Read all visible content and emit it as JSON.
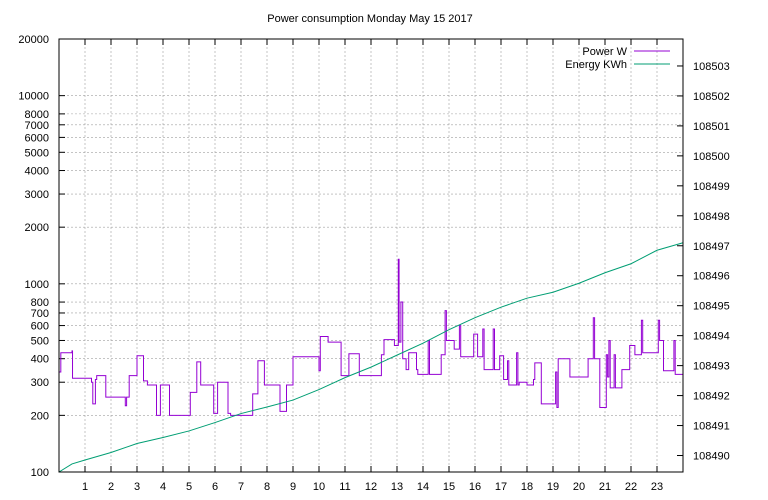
{
  "chart_data": {
    "type": "line",
    "title": "Power consumption Monday May 15 2017",
    "x_ticks": [
      1,
      2,
      3,
      4,
      5,
      6,
      7,
      8,
      9,
      10,
      11,
      12,
      13,
      14,
      15,
      16,
      17,
      18,
      19,
      20,
      21,
      22,
      23
    ],
    "xlim": [
      0,
      24
    ],
    "y_left": {
      "scale": "log",
      "lim": [
        100,
        20000
      ],
      "ticks": [
        100,
        200,
        300,
        400,
        500,
        600,
        700,
        800,
        1000,
        2000,
        3000,
        4000,
        5000,
        6000,
        7000,
        8000,
        10000,
        20000
      ]
    },
    "y_right": {
      "scale": "linear",
      "lim": [
        108489.45,
        108503.9
      ],
      "ticks": [
        108490,
        108491,
        108492,
        108493,
        108494,
        108495,
        108496,
        108497,
        108498,
        108499,
        108500,
        108501,
        108502,
        108503
      ]
    },
    "grid": true,
    "legend_position": "top-right",
    "series": [
      {
        "name": "Power W",
        "axis": "left",
        "color": "#9400d3",
        "step": true,
        "points": [
          [
            0.0,
            340
          ],
          [
            0.07,
            430
          ],
          [
            0.5,
            440
          ],
          [
            0.52,
            315
          ],
          [
            1.2,
            315
          ],
          [
            1.25,
            300
          ],
          [
            1.3,
            230
          ],
          [
            1.4,
            310
          ],
          [
            1.45,
            325
          ],
          [
            1.75,
            325
          ],
          [
            1.8,
            250
          ],
          [
            2.5,
            250
          ],
          [
            2.55,
            225
          ],
          [
            2.6,
            250
          ],
          [
            2.7,
            325
          ],
          [
            2.95,
            325
          ],
          [
            3.0,
            415
          ],
          [
            3.2,
            415
          ],
          [
            3.25,
            305
          ],
          [
            3.35,
            305
          ],
          [
            3.4,
            290
          ],
          [
            3.7,
            290
          ],
          [
            3.75,
            200
          ],
          [
            3.85,
            200
          ],
          [
            3.9,
            290
          ],
          [
            4.2,
            290
          ],
          [
            4.25,
            200
          ],
          [
            4.5,
            200
          ],
          [
            4.55,
            200
          ],
          [
            5.0,
            200
          ],
          [
            5.05,
            265
          ],
          [
            5.25,
            265
          ],
          [
            5.3,
            385
          ],
          [
            5.4,
            385
          ],
          [
            5.45,
            290
          ],
          [
            5.9,
            290
          ],
          [
            5.95,
            205
          ],
          [
            6.05,
            205
          ],
          [
            6.1,
            300
          ],
          [
            6.45,
            300
          ],
          [
            6.5,
            205
          ],
          [
            6.55,
            205
          ],
          [
            6.6,
            200
          ],
          [
            7.4,
            200
          ],
          [
            7.45,
            260
          ],
          [
            7.6,
            260
          ],
          [
            7.65,
            390
          ],
          [
            7.85,
            390
          ],
          [
            7.9,
            290
          ],
          [
            8.45,
            290
          ],
          [
            8.5,
            210
          ],
          [
            8.7,
            210
          ],
          [
            8.75,
            290
          ],
          [
            8.95,
            290
          ],
          [
            9.0,
            410
          ],
          [
            9.05,
            410
          ],
          [
            9.9,
            410
          ],
          [
            9.95,
            410
          ],
          [
            10.0,
            345
          ],
          [
            10.05,
            525
          ],
          [
            10.3,
            525
          ],
          [
            10.35,
            490
          ],
          [
            10.8,
            490
          ],
          [
            10.85,
            325
          ],
          [
            11.1,
            325
          ],
          [
            11.15,
            425
          ],
          [
            11.5,
            425
          ],
          [
            11.55,
            325
          ],
          [
            12.3,
            325
          ],
          [
            12.35,
            325
          ],
          [
            12.4,
            420
          ],
          [
            12.5,
            505
          ],
          [
            12.85,
            505
          ],
          [
            12.9,
            470
          ],
          [
            13.0,
            470
          ],
          [
            13.05,
            1350
          ],
          [
            13.07,
            1350
          ],
          [
            13.08,
            490
          ],
          [
            13.15,
            800
          ],
          [
            13.2,
            800
          ],
          [
            13.22,
            400
          ],
          [
            13.35,
            350
          ],
          [
            13.4,
            350
          ],
          [
            13.45,
            430
          ],
          [
            13.7,
            430
          ],
          [
            13.75,
            350
          ],
          [
            13.8,
            330
          ],
          [
            14.1,
            330
          ],
          [
            14.15,
            330
          ],
          [
            14.2,
            500
          ],
          [
            14.25,
            330
          ],
          [
            14.6,
            330
          ],
          [
            14.65,
            330
          ],
          [
            14.7,
            420
          ],
          [
            14.85,
            720
          ],
          [
            14.9,
            500
          ],
          [
            15.15,
            500
          ],
          [
            15.2,
            450
          ],
          [
            15.35,
            450
          ],
          [
            15.4,
            600
          ],
          [
            15.45,
            410
          ],
          [
            15.9,
            410
          ],
          [
            15.95,
            540
          ],
          [
            16.05,
            540
          ],
          [
            16.1,
            410
          ],
          [
            16.25,
            410
          ],
          [
            16.3,
            575
          ],
          [
            16.35,
            350
          ],
          [
            16.65,
            350
          ],
          [
            16.7,
            575
          ],
          [
            16.75,
            350
          ],
          [
            16.9,
            350
          ],
          [
            16.95,
            415
          ],
          [
            17.05,
            415
          ],
          [
            17.1,
            310
          ],
          [
            17.2,
            310
          ],
          [
            17.25,
            390
          ],
          [
            17.3,
            290
          ],
          [
            17.55,
            290
          ],
          [
            17.6,
            430
          ],
          [
            17.65,
            290
          ],
          [
            17.7,
            300
          ],
          [
            17.95,
            300
          ],
          [
            18.0,
            290
          ],
          [
            18.2,
            290
          ],
          [
            18.25,
            310
          ],
          [
            18.3,
            380
          ],
          [
            18.5,
            380
          ],
          [
            18.55,
            230
          ],
          [
            19.05,
            230
          ],
          [
            19.1,
            340
          ],
          [
            19.15,
            220
          ],
          [
            19.2,
            400
          ],
          [
            19.6,
            400
          ],
          [
            19.65,
            320
          ],
          [
            20.3,
            320
          ],
          [
            20.35,
            400
          ],
          [
            20.5,
            400
          ],
          [
            20.55,
            660
          ],
          [
            20.6,
            400
          ],
          [
            20.75,
            400
          ],
          [
            20.8,
            220
          ],
          [
            21.0,
            220
          ],
          [
            21.05,
            420
          ],
          [
            21.1,
            320
          ],
          [
            21.15,
            500
          ],
          [
            21.2,
            280
          ],
          [
            21.3,
            280
          ],
          [
            21.35,
            420
          ],
          [
            21.4,
            280
          ],
          [
            21.6,
            280
          ],
          [
            21.65,
            350
          ],
          [
            21.9,
            350
          ],
          [
            21.95,
            470
          ],
          [
            22.1,
            470
          ],
          [
            22.15,
            420
          ],
          [
            22.35,
            420
          ],
          [
            22.4,
            640
          ],
          [
            22.45,
            430
          ],
          [
            23.0,
            430
          ],
          [
            23.05,
            640
          ],
          [
            23.1,
            500
          ],
          [
            23.2,
            500
          ],
          [
            23.25,
            345
          ],
          [
            23.6,
            345
          ],
          [
            23.65,
            500
          ],
          [
            23.7,
            330
          ],
          [
            23.95,
            330
          ],
          [
            24.0,
            420
          ]
        ]
      },
      {
        "name": "Energy KWh",
        "axis": "right",
        "color": "#009e73",
        "step": false,
        "points": [
          [
            0,
            108489.45
          ],
          [
            0.5,
            108489.72
          ],
          [
            1,
            108489.85
          ],
          [
            2,
            108490.1
          ],
          [
            3,
            108490.4
          ],
          [
            4,
            108490.6
          ],
          [
            5,
            108490.82
          ],
          [
            6,
            108491.1
          ],
          [
            7,
            108491.4
          ],
          [
            8,
            108491.62
          ],
          [
            9,
            108491.85
          ],
          [
            10,
            108492.2
          ],
          [
            11,
            108492.6
          ],
          [
            12,
            108492.95
          ],
          [
            13,
            108493.35
          ],
          [
            14,
            108493.75
          ],
          [
            15,
            108494.2
          ],
          [
            16,
            108494.6
          ],
          [
            17,
            108494.95
          ],
          [
            18,
            108495.25
          ],
          [
            19,
            108495.45
          ],
          [
            20,
            108495.75
          ],
          [
            21,
            108496.1
          ],
          [
            22,
            108496.4
          ],
          [
            23,
            108496.85
          ],
          [
            24,
            108497.1
          ]
        ]
      }
    ]
  }
}
